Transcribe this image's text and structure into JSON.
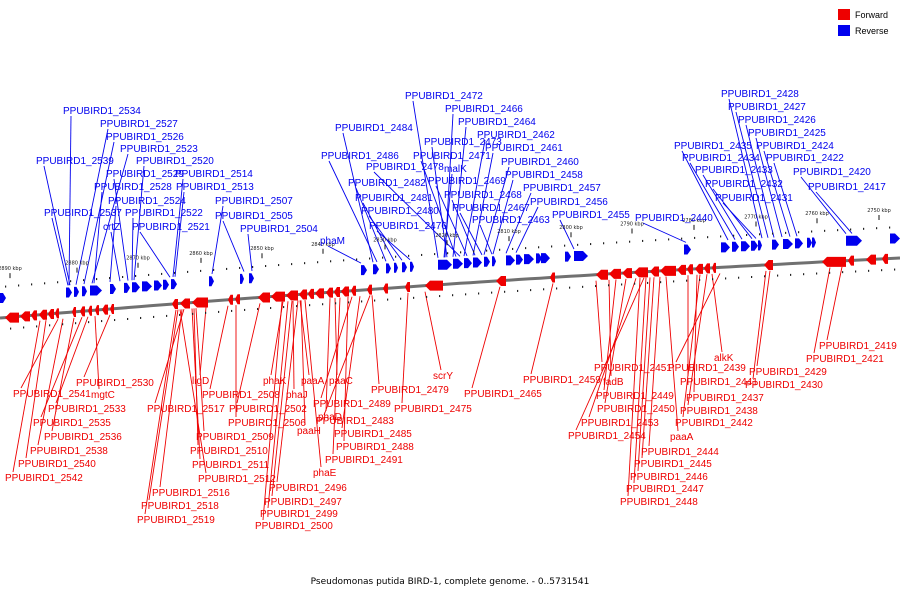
{
  "caption": "Pseudomonas putida BIRD-1, complete genome. - 0..5731541",
  "legend": [
    {
      "label": "Forward",
      "color": "#ee0000"
    },
    {
      "label": "Reverse",
      "color": "#0000ee"
    }
  ],
  "colors": {
    "forward": "#ee0000",
    "reverse": "#0000ee",
    "backbone": "#707070"
  },
  "ticks": [
    "2890 kbp",
    "2880 kbp",
    "2870 kbp",
    "2860 kbp",
    "2850 kbp",
    "2840 kbp",
    "2830 kbp",
    "2820 kbp",
    "2810 kbp",
    "2800 kbp",
    "2790 kbp",
    "2780 kbp",
    "2770 kbp",
    "2760 kbp",
    "2750 kbp"
  ],
  "reverse_labels": [
    "PPUBIRD1_2534",
    "PPUBIRD1_2527",
    "PPUBIRD1_2526",
    "PPUBIRD1_2523",
    "PPUBIRD1_2539",
    "PPUBIRD1_2520",
    "PPUBIRD1_2529",
    "PPUBIRD1_2514",
    "PPUBIRD1_2528",
    "PPUBIRD1_2513",
    "PPUBIRD1_2524",
    "PPUBIRD1_2507",
    "PPUBIRD1_2537",
    "PPUBIRD1_2522",
    "PPUBIRD1_2505",
    "crtZ",
    "PPUBIRD1_2521",
    "PPUBIRD1_2504",
    "phaM",
    "PPUBIRD1_2484",
    "PPUBIRD1_2486",
    "PPUBIRD1_2482",
    "PPUBIRD1_2481",
    "PPUBIRD1_2480",
    "PPUBIRD1_2476",
    "PPUBIRD1_2472",
    "PPUBIRD1_2466",
    "PPUBIRD1_2464",
    "PPUBIRD1_2462",
    "PPUBIRD1_2473",
    "PPUBIRD1_2461",
    "PPUBIRD1_2471",
    "PPUBIRD1_2460",
    "PPUBIRD1_2478",
    "malK",
    "PPUBIRD1_2458",
    "PPUBIRD1_2469",
    "PPUBIRD1_2457",
    "PPUBIRD1_2468",
    "PPUBIRD1_2456",
    "PPUBIRD1_2467",
    "PPUBIRD1_2455",
    "PPUBIRD1_2463",
    "PPUBIRD1_2440",
    "PPUBIRD1_2428",
    "PPUBIRD1_2427",
    "PPUBIRD1_2426",
    "PPUBIRD1_2425",
    "PPUBIRD1_2435",
    "PPUBIRD1_2424",
    "PPUBIRD1_2434",
    "PPUBIRD1_2422",
    "PPUBIRD1_2433",
    "PPUBIRD1_2420",
    "PPUBIRD1_2432",
    "PPUBIRD1_2417",
    "PPUBIRD1_2431"
  ],
  "forward_labels": [
    "PPUBIRD1_2530",
    "PPUBIRD1_2541",
    "mgtC",
    "PPUBIRD1_2533",
    "PPUBIRD1_2535",
    "PPUBIRD1_2536",
    "PPUBIRD1_2538",
    "PPUBIRD1_2540",
    "PPUBIRD1_2542",
    "ligD",
    "PPUBIRD1_2517",
    "PPUBIRD1_2508",
    "PPUBIRD1_2506",
    "PPUBIRD1_2509",
    "PPUBIRD1_2510",
    "PPUBIRD1_2511",
    "PPUBIRD1_2512",
    "PPUBIRD1_2516",
    "PPUBIRD1_2518",
    "PPUBIRD1_2519",
    "phaK",
    "phaJ",
    "paaA",
    "paaC",
    "PPUBIRD1_2502",
    "paaH",
    "phaD",
    "phaE",
    "PPUBIRD1_2496",
    "PPUBIRD1_2497",
    "PPUBIRD1_2499",
    "PPUBIRD1_2500",
    "PPUBIRD1_2489",
    "PPUBIRD1_2483",
    "PPUBIRD1_2485",
    "PPUBIRD1_2488",
    "PPUBIRD1_2491",
    "PPUBIRD1_2479",
    "scrY",
    "PPUBIRD1_2475",
    "PPUBIRD1_2465",
    "PPUBIRD1_2459",
    "PPUBIRD1_2451",
    "fadB",
    "PPUBIRD1_2449",
    "PPUBIRD1_2450",
    "PPUBIRD1_2453",
    "PPUBIRD1_2454",
    "paaA",
    "PPUBIRD1_2444",
    "PPUBIRD1_2445",
    "PPUBIRD1_2446",
    "PPUBIRD1_2447",
    "PPUBIRD1_2448",
    "PPUBIRD1_2441",
    "PPUBIRD1_2437",
    "PPUBIRD1_2438",
    "PPUBIRD1_2442",
    "alkK",
    "PPUBIRD1_2439",
    "PPUBIRD1_2429",
    "PPUBIRD1_2430",
    "PPUBIRD1_2419",
    "PPUBIRD1_2421"
  ]
}
